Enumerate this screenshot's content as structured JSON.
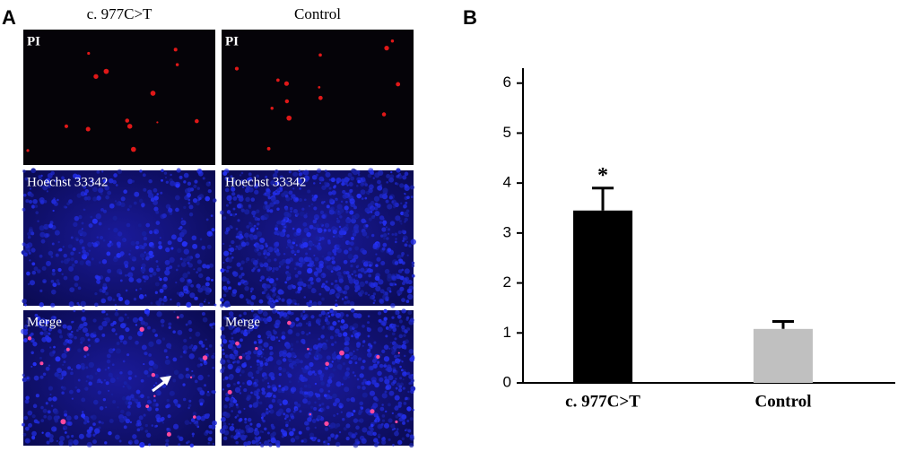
{
  "panel_a": {
    "label": "A",
    "columns": [
      "c. 977C>T",
      "Control"
    ],
    "rows": [
      "PI",
      "Hoechst 33342",
      "Merge"
    ]
  },
  "chart_data": {
    "type": "bar",
    "panel_label": "B",
    "categories": [
      "c. 977C>T",
      "Control"
    ],
    "values": [
      3.45,
      1.08
    ],
    "errors": [
      0.45,
      0.15
    ],
    "colors": [
      "#000000",
      "#c0c0c0"
    ],
    "annotations": [
      "*"
    ],
    "ylim": [
      0,
      6.3
    ],
    "yticks": [
      0,
      1,
      2,
      3,
      4,
      5,
      6
    ]
  }
}
